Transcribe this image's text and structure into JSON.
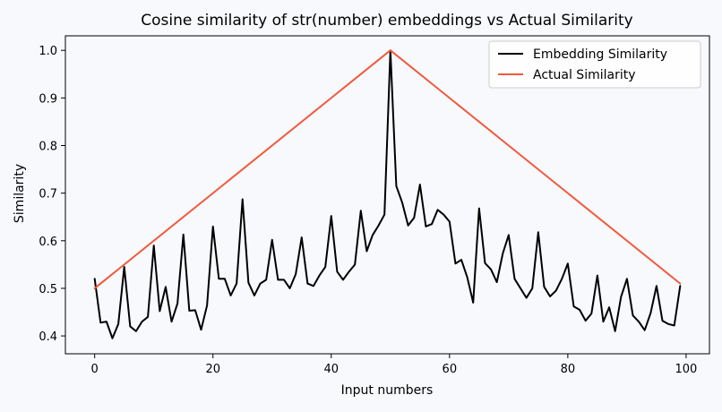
{
  "chart_data": {
    "type": "line",
    "title": "Cosine similarity of str(number) embeddings vs Actual Similarity",
    "xlabel": "Input numbers",
    "ylabel": "Similarity",
    "xlim": [
      -4.95,
      103.95
    ],
    "ylim": [
      0.3625,
      1.0305
    ],
    "xticks": [
      0,
      20,
      40,
      60,
      80,
      100
    ],
    "yticks": [
      0.4,
      0.5,
      0.6,
      0.7,
      0.8,
      0.9,
      1.0
    ],
    "xtick_labels": [
      "0",
      "20",
      "40",
      "60",
      "80",
      "100"
    ],
    "ytick_labels": [
      "0.4",
      "0.5",
      "0.6",
      "0.7",
      "0.8",
      "0.9",
      "1.0"
    ],
    "grid": false,
    "legend": "top-right",
    "series": [
      {
        "name": "Embedding Similarity",
        "color": "#000000",
        "values": [
          0.52,
          0.428,
          0.43,
          0.395,
          0.425,
          0.545,
          0.42,
          0.41,
          0.43,
          0.44,
          0.59,
          0.452,
          0.503,
          0.43,
          0.468,
          0.613,
          0.453,
          0.454,
          0.413,
          0.464,
          0.63,
          0.52,
          0.52,
          0.485,
          0.51,
          0.687,
          0.512,
          0.485,
          0.51,
          0.518,
          0.602,
          0.518,
          0.518,
          0.5,
          0.53,
          0.607,
          0.51,
          0.505,
          0.527,
          0.545,
          0.652,
          0.535,
          0.518,
          0.535,
          0.55,
          0.663,
          0.578,
          0.612,
          0.632,
          0.655,
          1.0,
          0.715,
          0.68,
          0.632,
          0.648,
          0.718,
          0.63,
          0.635,
          0.665,
          0.655,
          0.64,
          0.552,
          0.56,
          0.523,
          0.47,
          0.668,
          0.553,
          0.54,
          0.513,
          0.573,
          0.612,
          0.52,
          0.5,
          0.48,
          0.5,
          0.618,
          0.503,
          0.483,
          0.495,
          0.52,
          0.552,
          0.462,
          0.455,
          0.432,
          0.447,
          0.527,
          0.43,
          0.46,
          0.41,
          0.482,
          0.52,
          0.443,
          0.43,
          0.412,
          0.448,
          0.505,
          0.432,
          0.425,
          0.422,
          0.505
        ]
      },
      {
        "name": "Actual Similarity",
        "color": "#f05a3c",
        "x": [
          0,
          50,
          99
        ],
        "values": [
          0.5,
          1.0,
          0.51
        ]
      }
    ]
  }
}
